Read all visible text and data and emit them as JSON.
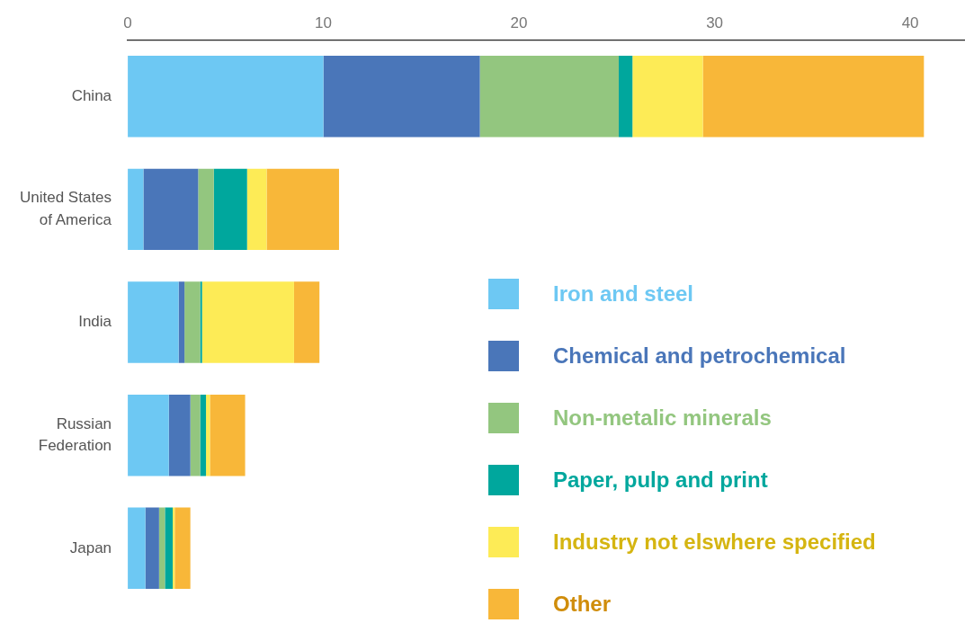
{
  "chart_data": {
    "type": "bar",
    "orientation": "horizontal",
    "stacked": true,
    "categories": [
      "China",
      "United States of America",
      "India",
      "Russian Federation",
      "Japan"
    ],
    "series": [
      {
        "name": "Iron and steel",
        "color": "#6dc8f3",
        "values": [
          10.0,
          0.8,
          2.6,
          2.1,
          0.9
        ]
      },
      {
        "name": "Chemical and petrochemical",
        "color": "#4a76b9",
        "values": [
          8.0,
          2.8,
          0.3,
          1.1,
          0.7
        ]
      },
      {
        "name": "Non-metalic minerals",
        "color": "#93c67f",
        "values": [
          7.1,
          0.8,
          0.8,
          0.5,
          0.3
        ]
      },
      {
        "name": "Paper, pulp and print",
        "color": "#00a79d",
        "values": [
          0.7,
          1.7,
          0.1,
          0.3,
          0.4
        ]
      },
      {
        "name": "Industry not elswhere specified",
        "color": "#fdeb56",
        "values": [
          3.6,
          1.0,
          4.7,
          0.2,
          0.1
        ]
      },
      {
        "name": "Other",
        "color": "#f8b739",
        "values": [
          11.3,
          3.7,
          1.3,
          1.8,
          0.8
        ]
      }
    ],
    "xlim": [
      0,
      42.8
    ],
    "xticks": [
      0,
      10,
      20,
      30,
      40
    ],
    "grid": false,
    "legend": "bottom right"
  }
}
